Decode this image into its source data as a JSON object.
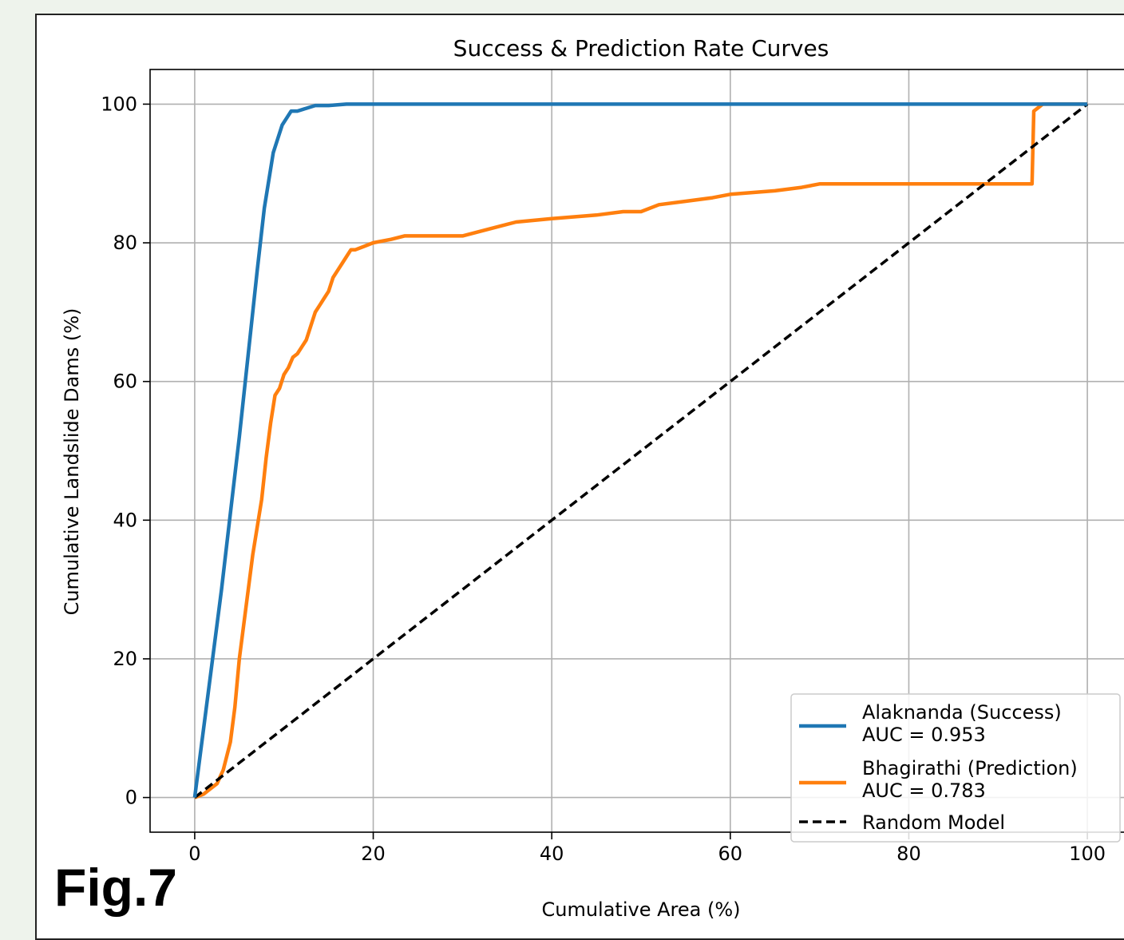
{
  "figure_label": "Fig.7",
  "colors": {
    "background": "#eef3ec",
    "panel": "#ffffff",
    "grid": "#b0b0b0",
    "success": "#1f77b4",
    "prediction": "#ff7f0e",
    "random": "#000000"
  },
  "chart_data": {
    "type": "line",
    "title": "Success & Prediction Rate Curves",
    "xlabel": "Cumulative Area (%)",
    "ylabel": "Cumulative Landslide Dams (%)",
    "xlim": [
      -5,
      105
    ],
    "ylim": [
      -5,
      105
    ],
    "xticks": [
      0,
      20,
      40,
      60,
      80,
      100
    ],
    "yticks": [
      0,
      20,
      40,
      60,
      80,
      100
    ],
    "grid": true,
    "legend_position": "lower-right",
    "series": [
      {
        "name": "Alaknanda (Success)",
        "auc_label": "AUC = 0.953",
        "color": "#1f77b4",
        "style": "solid",
        "x": [
          0,
          1,
          2,
          3,
          4,
          5,
          6,
          7,
          7.8,
          8.3,
          8.8,
          9.3,
          9.8,
          10.3,
          10.8,
          11.5,
          12.5,
          13.5,
          15,
          17,
          30,
          50,
          70,
          90,
          95,
          100
        ],
        "y": [
          0,
          10,
          20,
          30,
          41,
          52,
          64,
          76,
          85,
          89,
          93,
          95,
          97,
          98,
          99,
          99,
          99.4,
          99.8,
          99.8,
          100,
          100,
          100,
          100,
          100,
          100,
          100
        ]
      },
      {
        "name": "Bhagirathi (Prediction)",
        "auc_label": "AUC = 0.783",
        "color": "#ff7f0e",
        "style": "solid",
        "x": [
          0,
          1,
          1.5,
          2.5,
          3.2,
          4,
          4.5,
          5,
          5.5,
          6,
          6.5,
          7,
          7.5,
          8,
          8.5,
          9,
          9.5,
          10,
          10.5,
          11,
          11.5,
          12,
          12.5,
          13,
          13.5,
          14,
          14.5,
          15,
          15.5,
          16,
          16.5,
          17,
          17.5,
          18,
          19,
          20,
          22,
          23.5,
          25,
          30,
          33,
          36,
          40,
          45,
          48,
          50,
          52,
          55,
          58,
          60,
          65,
          68,
          70,
          75,
          80,
          85,
          90,
          93,
          93.8,
          94,
          94.5,
          95,
          95.5,
          96,
          100
        ],
        "y": [
          0,
          0.5,
          1,
          2,
          4,
          8,
          13,
          20,
          25,
          30,
          35,
          39,
          43,
          49,
          54,
          58,
          59,
          61,
          62,
          63.5,
          64,
          65,
          66,
          68,
          70,
          71,
          72,
          73,
          75,
          76,
          77,
          78,
          79,
          79,
          79.5,
          80,
          80.5,
          81,
          81,
          81,
          82,
          83,
          83.5,
          84,
          84.5,
          84.5,
          85.5,
          86,
          86.5,
          87,
          87.5,
          88,
          88.5,
          88.5,
          88.5,
          88.5,
          88.5,
          88.5,
          88.5,
          99,
          99.5,
          100,
          100,
          100,
          100
        ]
      },
      {
        "name": "Random Model",
        "auc_label": "",
        "color": "#000000",
        "style": "dashed",
        "x": [
          0,
          100
        ],
        "y": [
          0,
          100
        ]
      }
    ]
  }
}
